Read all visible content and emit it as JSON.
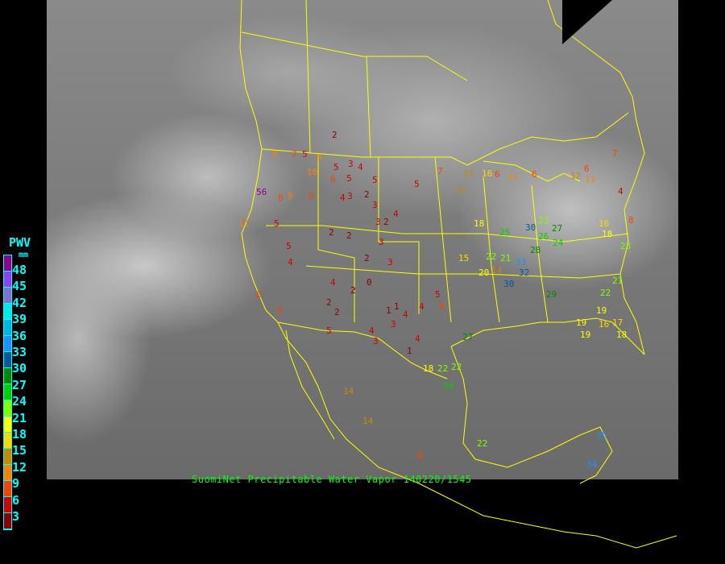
{
  "legend": {
    "title": "PWV",
    "unit": "mm",
    "labels": [
      "48",
      "45",
      "42",
      "39",
      "36",
      "33",
      "30",
      "27",
      "24",
      "21",
      "18",
      "15",
      "12",
      "9",
      "6",
      "3"
    ],
    "colors": [
      "#900090",
      "#9040f0",
      "#8070d0",
      "#00e8e8",
      "#00b4e0",
      "#1e90ff",
      "#005a9c",
      "#008800",
      "#00d000",
      "#80ff00",
      "#ffff00",
      "#ffd700",
      "#c88a00",
      "#ff8000",
      "#ff4000",
      "#d00000",
      "#8b0000"
    ]
  },
  "caption": "SuomiNet Precipitable Water Vapor 140220/1545",
  "border_color": "#ffff00",
  "stations": [
    "2",
    "9",
    "7",
    "5",
    "9",
    "3",
    "4",
    "5",
    "5",
    "7",
    "12",
    "16",
    "6",
    "11",
    "6",
    "12",
    "56",
    "8",
    "9",
    "6",
    "6",
    "5",
    "3",
    "2",
    "3",
    "5",
    "13",
    "4",
    "3",
    "2",
    "11",
    "5",
    "2",
    "2",
    "4",
    "7",
    "10",
    "18",
    "3",
    "15",
    "4",
    "5",
    "4",
    "14",
    "6",
    "8",
    "2",
    "2",
    "0",
    "3",
    "2",
    "1",
    "4",
    "2",
    "5",
    "5",
    "4",
    "1",
    "3",
    "4",
    "3",
    "4",
    "1",
    "8",
    "27",
    "30",
    "33",
    "22",
    "22",
    "24",
    "18",
    "25",
    "30",
    "27",
    "26",
    "28",
    "24",
    "32",
    "29",
    "20",
    "22",
    "21",
    "23",
    "22",
    "19",
    "19",
    "17",
    "18",
    "21",
    "16",
    "18",
    "11",
    "6",
    "4",
    "8",
    "14",
    "14",
    "8",
    "23",
    "35",
    "34",
    "22",
    "19",
    "16"
  ]
}
